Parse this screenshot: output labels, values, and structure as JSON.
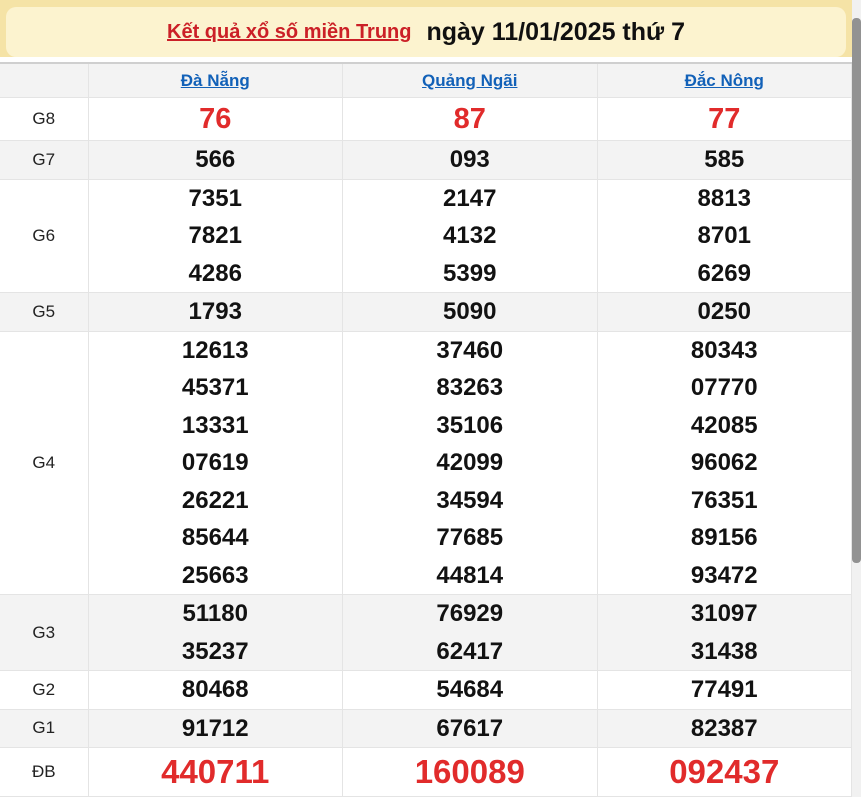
{
  "page": {
    "title_link": "Kết quả xổ số miền Trung",
    "title_rest": " ngày 11/01/2025 thứ 7"
  },
  "colors": {
    "banner_outer": "#F5E3A6",
    "banner_inner": "#FCF3CF",
    "title_link_red": "#CB2027",
    "header_link_blue": "#1261B8",
    "value_red": "#E12B2B",
    "shaded_row": "#F3F3F3"
  },
  "table": {
    "columns": [
      "Đà Nẵng",
      "Quảng Ngãi",
      "Đắc Nông"
    ],
    "rows": [
      {
        "label": "G8",
        "style": "red-large",
        "cells": [
          [
            "76"
          ],
          [
            "87"
          ],
          [
            "77"
          ]
        ]
      },
      {
        "label": "G7",
        "style": "normal",
        "cells": [
          [
            "566"
          ],
          [
            "093"
          ],
          [
            "585"
          ]
        ]
      },
      {
        "label": "G6",
        "style": "normal",
        "cells": [
          [
            "7351",
            "7821",
            "4286"
          ],
          [
            "2147",
            "4132",
            "5399"
          ],
          [
            "8813",
            "8701",
            "6269"
          ]
        ]
      },
      {
        "label": "G5",
        "style": "normal",
        "cells": [
          [
            "1793"
          ],
          [
            "5090"
          ],
          [
            "0250"
          ]
        ]
      },
      {
        "label": "G4",
        "style": "normal",
        "cells": [
          [
            "12613",
            "45371",
            "13331",
            "07619",
            "26221",
            "85644",
            "25663"
          ],
          [
            "37460",
            "83263",
            "35106",
            "42099",
            "34594",
            "77685",
            "44814"
          ],
          [
            "80343",
            "07770",
            "42085",
            "96062",
            "76351",
            "89156",
            "93472"
          ]
        ]
      },
      {
        "label": "G3",
        "style": "normal",
        "cells": [
          [
            "51180",
            "35237"
          ],
          [
            "76929",
            "62417"
          ],
          [
            "31097",
            "31438"
          ]
        ]
      },
      {
        "label": "G2",
        "style": "normal",
        "cells": [
          [
            "80468"
          ],
          [
            "54684"
          ],
          [
            "77491"
          ]
        ]
      },
      {
        "label": "G1",
        "style": "normal",
        "cells": [
          [
            "91712"
          ],
          [
            "67617"
          ],
          [
            "82387"
          ]
        ]
      },
      {
        "label": "ĐB",
        "style": "red-xl",
        "cells": [
          [
            "440711"
          ],
          [
            "160089"
          ],
          [
            "092437"
          ]
        ]
      }
    ]
  }
}
